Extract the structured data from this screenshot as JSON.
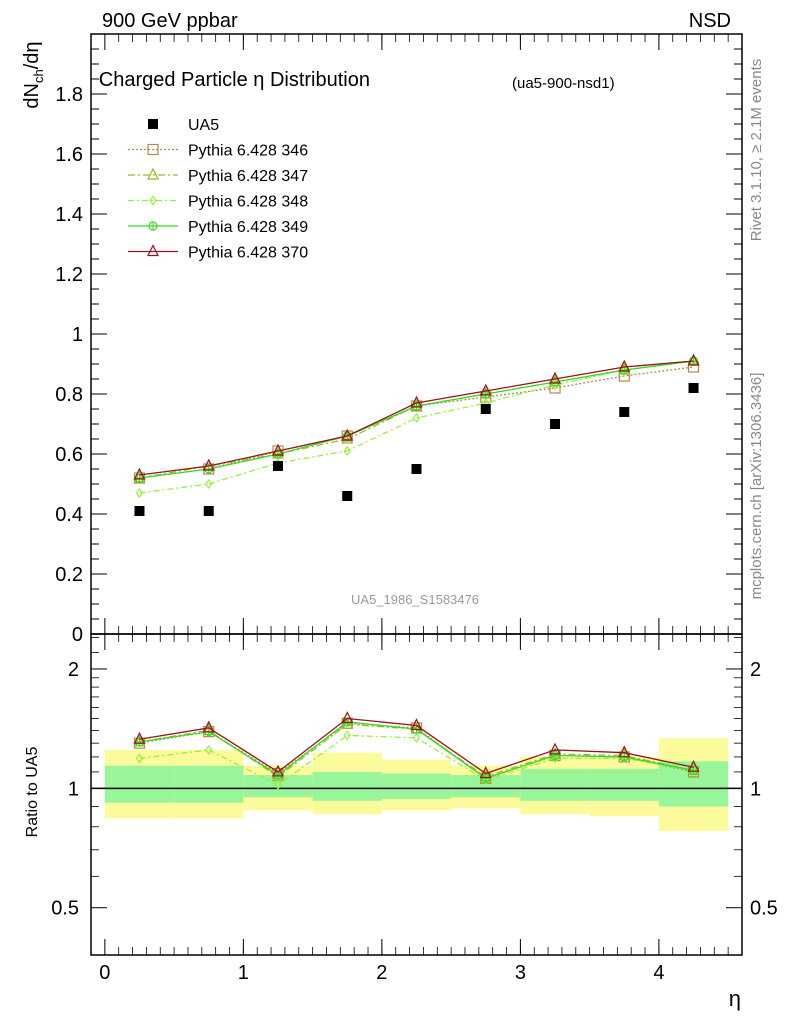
{
  "header": {
    "left": "900 GeV ppbar",
    "right": "NSD"
  },
  "side_labels": {
    "rivet": "Rivet 3.1.10, ≥ 2.1M events",
    "source": "mcplots.cern.ch [arXiv:1306.3436]"
  },
  "chart_data": [
    {
      "type": "scatter",
      "title": "Charged Particle η Distribution",
      "title_tag": "(ua5-900-nsd1)",
      "ylabel_main": "dN",
      "ylabel_sub": "ch",
      "ylabel_tail": "/dη",
      "watermark": "UA5_1986_S1583476",
      "xlim": [
        -0.1,
        4.6
      ],
      "ylim": [
        0,
        2.0
      ],
      "yticks": [
        0,
        0.2,
        0.4,
        0.6,
        0.8,
        1,
        1.2,
        1.4,
        1.6,
        1.8
      ],
      "ytick_labels": [
        "0",
        "0.2",
        "0.4",
        "0.6",
        "0.8",
        "1",
        "1.2",
        "1.4",
        "1.6",
        "1.8"
      ],
      "x": [
        0.25,
        0.75,
        1.25,
        1.75,
        2.25,
        2.75,
        3.25,
        3.75,
        4.25
      ],
      "data": {
        "name": "UA5",
        "values": [
          0.41,
          0.41,
          0.56,
          0.46,
          0.55,
          0.75,
          0.7,
          0.74,
          0.82
        ]
      },
      "series": [
        {
          "name": "Pythia 6.428 346",
          "color": "#b5894a",
          "marker": "square",
          "dash": "2,2",
          "values": [
            0.52,
            0.55,
            0.61,
            0.66,
            0.76,
            0.79,
            0.82,
            0.86,
            0.89
          ]
        },
        {
          "name": "Pythia 6.428 347",
          "color": "#99bb22",
          "marker": "triangle",
          "dash": "7,3,2,3",
          "values": [
            0.52,
            0.56,
            0.6,
            0.65,
            0.76,
            0.8,
            0.84,
            0.88,
            0.91
          ]
        },
        {
          "name": "Pythia 6.428 348",
          "color": "#99ee44",
          "marker": "diamond",
          "dash": "6,3,2,3",
          "values": [
            0.47,
            0.5,
            0.57,
            0.61,
            0.72,
            0.77,
            0.83,
            0.88,
            0.91
          ]
        },
        {
          "name": "Pythia 6.428 349",
          "color": "#33dd22",
          "marker": "circleplus",
          "dash": "",
          "values": [
            0.52,
            0.55,
            0.6,
            0.66,
            0.76,
            0.8,
            0.84,
            0.88,
            0.91
          ]
        },
        {
          "name": "Pythia 6.428 370",
          "color": "#991122",
          "marker": "triangle",
          "dash": "",
          "values": [
            0.53,
            0.56,
            0.61,
            0.66,
            0.77,
            0.81,
            0.85,
            0.89,
            0.91
          ]
        }
      ]
    },
    {
      "type": "line",
      "ylabel": "Ratio to UA5",
      "xlabel": "η",
      "log_y": true,
      "ylim": [
        0.38,
        2.45
      ],
      "yticks": [
        0.5,
        1,
        2
      ],
      "ytick_labels": [
        "0.5",
        "1",
        "2"
      ],
      "xticks": [
        0,
        1,
        2,
        3,
        4
      ],
      "xtick_labels": [
        "0",
        "1",
        "2",
        "3",
        "4"
      ],
      "bins": [
        {
          "lo": 0.0,
          "hi": 0.5,
          "band1": [
            0.92,
            1.14
          ],
          "band2": [
            0.84,
            1.25
          ]
        },
        {
          "lo": 0.5,
          "hi": 1.0,
          "band1": [
            0.92,
            1.14
          ],
          "band2": [
            0.84,
            1.25
          ]
        },
        {
          "lo": 1.0,
          "hi": 1.5,
          "band1": [
            0.95,
            1.08
          ],
          "band2": [
            0.88,
            1.14
          ]
        },
        {
          "lo": 1.5,
          "hi": 2.0,
          "band1": [
            0.93,
            1.1
          ],
          "band2": [
            0.86,
            1.23
          ]
        },
        {
          "lo": 2.0,
          "hi": 2.5,
          "band1": [
            0.94,
            1.09
          ],
          "band2": [
            0.88,
            1.18
          ]
        },
        {
          "lo": 2.5,
          "hi": 3.0,
          "band1": [
            0.95,
            1.08
          ],
          "band2": [
            0.89,
            1.14
          ]
        },
        {
          "lo": 3.0,
          "hi": 3.5,
          "band1": [
            0.93,
            1.12
          ],
          "band2": [
            0.86,
            1.2
          ]
        },
        {
          "lo": 3.5,
          "hi": 4.0,
          "band1": [
            0.93,
            1.12
          ],
          "band2": [
            0.85,
            1.2
          ]
        },
        {
          "lo": 4.0,
          "hi": 4.5,
          "band1": [
            0.9,
            1.17
          ],
          "band2": [
            0.78,
            1.34
          ]
        }
      ],
      "band_colors": {
        "inner": "#99f599",
        "outer": "#fbfb9c"
      },
      "series": [
        {
          "name": "Pythia 6.428 346",
          "values": [
            1.3,
            1.39,
            1.09,
            1.46,
            1.42,
            1.06,
            1.21,
            1.2,
            1.1
          ]
        },
        {
          "name": "Pythia 6.428 347",
          "values": [
            1.31,
            1.4,
            1.07,
            1.45,
            1.41,
            1.07,
            1.22,
            1.21,
            1.11
          ]
        },
        {
          "name": "Pythia 6.428 348",
          "values": [
            1.19,
            1.25,
            1.02,
            1.36,
            1.34,
            1.05,
            1.19,
            1.19,
            1.11
          ]
        },
        {
          "name": "Pythia 6.428 349",
          "values": [
            1.31,
            1.39,
            1.08,
            1.47,
            1.41,
            1.06,
            1.21,
            1.2,
            1.11
          ]
        },
        {
          "name": "Pythia 6.428 370",
          "values": [
            1.33,
            1.42,
            1.1,
            1.5,
            1.44,
            1.09,
            1.25,
            1.23,
            1.13
          ]
        }
      ]
    }
  ]
}
